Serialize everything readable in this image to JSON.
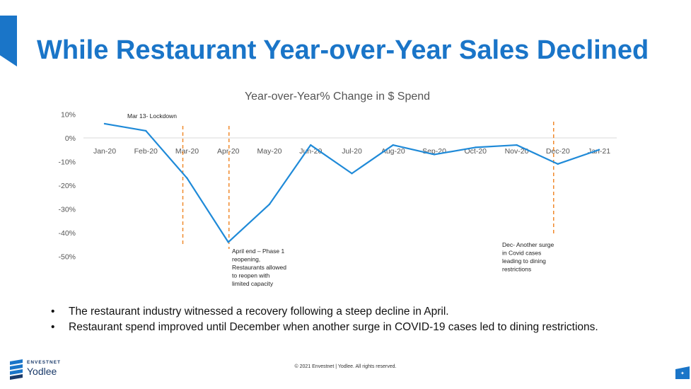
{
  "slide": {
    "title": "While Restaurant Year-over-Year Sales Declined",
    "bullets": [
      "The restaurant industry witnessed a recovery following a steep decline in April.",
      "Restaurant spend improved until December when another surge in COVID-19 cases led to dining restrictions."
    ],
    "bullet_char": "•",
    "copyright": "© 2021 Envestnet | Yodlee. All rights reserved.",
    "logo": {
      "top": "ENVESTNET",
      "bottom": "Yodlee"
    },
    "accent_color": "#1a75c8",
    "page_mark_icon": "star-icon"
  },
  "chart_data": {
    "type": "line",
    "title": "Year-over-Year% Change in $ Spend",
    "xlabel": "",
    "ylabel": "",
    "categories": [
      "Jan-20",
      "Feb-20",
      "Mar-20",
      "Apr-20",
      "May-20",
      "Jun-20",
      "Jul-20",
      "Aug-20",
      "Sep-20",
      "Oct-20",
      "Nov-20",
      "Dec-20",
      "Jan-21"
    ],
    "series": [
      {
        "values": [
          6,
          3,
          -17,
          -44,
          -28,
          -3,
          -15,
          -3,
          -7,
          -4,
          -3,
          -11,
          -5
        ],
        "color": "#1f8ad8"
      }
    ],
    "ylim": [
      -50,
      10
    ],
    "y_ticks": [
      {
        "value": 10,
        "label": "10%"
      },
      {
        "value": 0,
        "label": "0%"
      },
      {
        "value": -10,
        "label": "-10%"
      },
      {
        "value": -20,
        "label": "-20%"
      },
      {
        "value": -30,
        "label": "-30%"
      },
      {
        "value": -40,
        "label": "-40%"
      },
      {
        "value": -50,
        "label": "-50%"
      }
    ],
    "zero_line": true,
    "grid": false,
    "event_lines": [
      {
        "category": "Mar-20",
        "color": "#f08a2c",
        "label": "Mar 13- Lockdown"
      },
      {
        "category": "Apr-20",
        "color": "#f08a2c",
        "label": "April end – Phase 1\nreopening,\nRestaurants allowed\nto  reopen with\nlimited capacity"
      },
      {
        "category": "Dec-20",
        "color": "#f08a2c",
        "label": "Dec- Another  surge\nin Covid cases\nleading to dining\nrestrictions"
      }
    ]
  }
}
